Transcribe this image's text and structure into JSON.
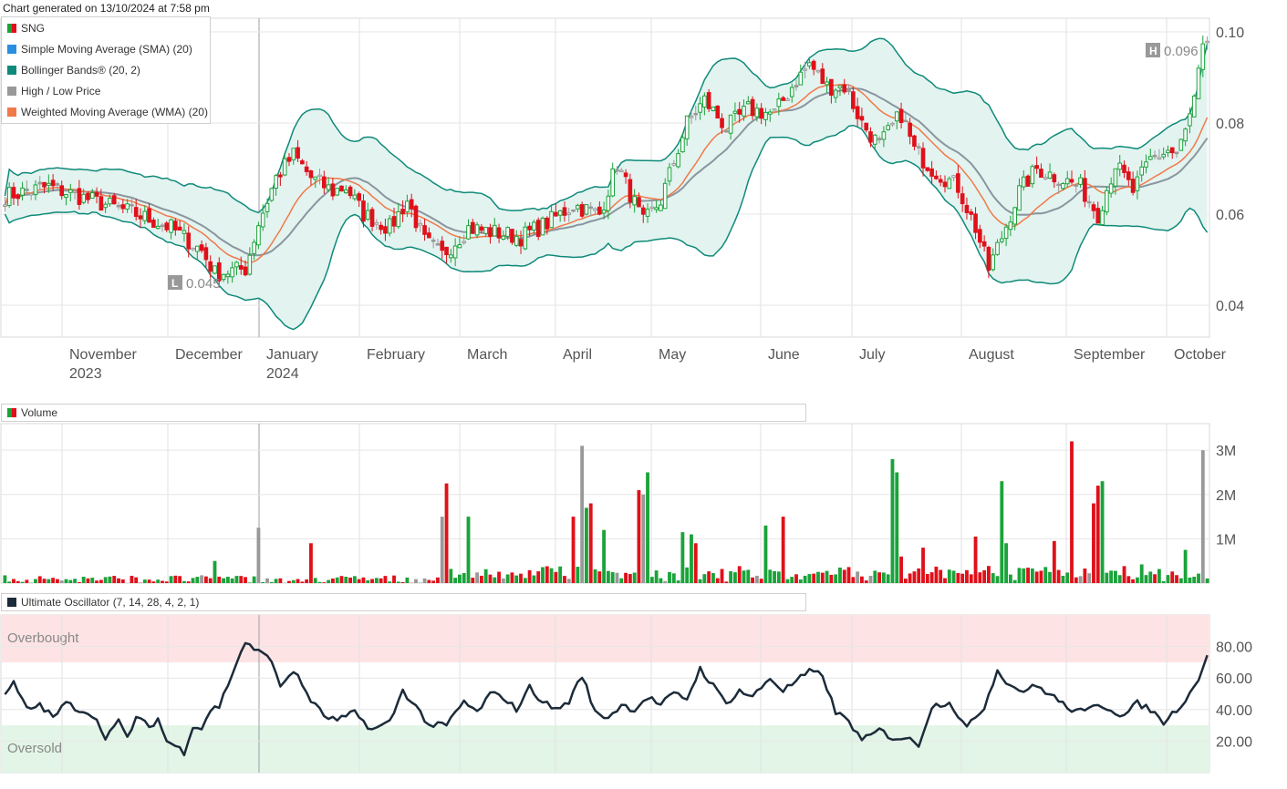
{
  "header": {
    "generated": "Chart generated on 13/10/2024 at 7:58 pm"
  },
  "legend": [
    {
      "label": "SNG",
      "color": "split"
    },
    {
      "label": "Simple Moving Average (SMA) (20)",
      "color": "#2a8ee0"
    },
    {
      "label": "Bollinger Bands® (20, 2)",
      "color": "#0f8a7a"
    },
    {
      "label": "High / Low Price",
      "color": "#999999"
    },
    {
      "label": "Weighted Moving Average (WMA) (20)",
      "color": "#f0794a"
    }
  ],
  "volume_panel": {
    "title": "Volume"
  },
  "osc_panel": {
    "title": "Ultimate Oscillator (7, 14, 28, 4, 2, 1)",
    "overbought": "Overbought",
    "oversold": "Oversold"
  },
  "colors": {
    "up": "#1aa33a",
    "down": "#e0101a",
    "neutral": "#999999",
    "band": "#0f8a7a",
    "bandFill": "#e3f3f0",
    "sma": "#8a959e",
    "wma": "#f0794a",
    "osc": "#1c2b3a",
    "obFill": "#fde3e3",
    "osFill": "#e3f5e6"
  },
  "chart_data": [
    {
      "type": "candlestick",
      "title": "SNG",
      "ylim": [
        0.033,
        0.103
      ],
      "y_ticks": [
        "0.10",
        "0.08",
        "0.06",
        "0.04"
      ],
      "x_ticks": [
        {
          "label": "November",
          "sub": "2023",
          "x": 68
        },
        {
          "label": "December",
          "sub": "",
          "x": 184
        },
        {
          "label": "January",
          "sub": "2024",
          "x": 284
        },
        {
          "label": "February",
          "sub": "",
          "x": 394
        },
        {
          "label": "March",
          "sub": "",
          "x": 504
        },
        {
          "label": "April",
          "sub": "",
          "x": 609
        },
        {
          "label": "May",
          "sub": "",
          "x": 714
        },
        {
          "label": "June",
          "sub": "",
          "x": 834
        },
        {
          "label": "July",
          "sub": "",
          "x": 934
        },
        {
          "label": "August",
          "sub": "",
          "x": 1054
        },
        {
          "label": "September",
          "sub": "",
          "x": 1169
        },
        {
          "label": "October",
          "sub": "",
          "x": 1279
        }
      ],
      "high_label": {
        "tag": "H",
        "value": "0.096"
      },
      "low_label": {
        "tag": "L",
        "value": "0.045"
      },
      "close_anchors": [
        [
          0,
          0.064
        ],
        [
          10,
          0.066
        ],
        [
          20,
          0.063
        ],
        [
          30,
          0.06
        ],
        [
          38,
          0.057
        ],
        [
          45,
          0.052
        ],
        [
          48,
          0.047
        ],
        [
          55,
          0.048
        ],
        [
          58,
          0.058
        ],
        [
          62,
          0.068
        ],
        [
          66,
          0.073
        ],
        [
          70,
          0.068
        ],
        [
          75,
          0.065
        ],
        [
          78,
          0.066
        ],
        [
          82,
          0.06
        ],
        [
          88,
          0.057
        ],
        [
          92,
          0.063
        ],
        [
          96,
          0.054
        ],
        [
          100,
          0.051
        ],
        [
          106,
          0.057
        ],
        [
          112,
          0.056
        ],
        [
          118,
          0.055
        ],
        [
          124,
          0.058
        ],
        [
          130,
          0.062
        ],
        [
          136,
          0.06
        ],
        [
          140,
          0.071
        ],
        [
          146,
          0.058
        ],
        [
          150,
          0.063
        ],
        [
          156,
          0.08
        ],
        [
          160,
          0.085
        ],
        [
          165,
          0.079
        ],
        [
          170,
          0.083
        ],
        [
          176,
          0.082
        ],
        [
          180,
          0.088
        ],
        [
          184,
          0.093
        ],
        [
          188,
          0.088
        ],
        [
          192,
          0.088
        ],
        [
          196,
          0.08
        ],
        [
          200,
          0.075
        ],
        [
          205,
          0.082
        ],
        [
          208,
          0.074
        ],
        [
          212,
          0.07
        ],
        [
          218,
          0.066
        ],
        [
          222,
          0.057
        ],
        [
          225,
          0.048
        ],
        [
          228,
          0.055
        ],
        [
          232,
          0.065
        ],
        [
          236,
          0.07
        ],
        [
          241,
          0.068
        ],
        [
          246,
          0.066
        ],
        [
          250,
          0.06
        ],
        [
          254,
          0.071
        ],
        [
          258,
          0.065
        ],
        [
          262,
          0.072
        ],
        [
          266,
          0.074
        ],
        [
          268,
          0.073
        ],
        [
          270,
          0.078
        ],
        [
          272,
          0.085
        ],
        [
          274,
          0.096
        ]
      ],
      "volume_ylim": [
        0,
        3.6
      ],
      "volume_ticks": [
        "3M",
        "2M",
        "1M"
      ],
      "volume_spikes": [
        [
          48,
          0.5
        ],
        [
          58,
          1.25
        ],
        [
          70,
          0.9
        ],
        [
          100,
          1.5
        ],
        [
          101,
          2.25
        ],
        [
          106,
          1.5
        ],
        [
          130,
          1.5
        ],
        [
          132,
          3.1
        ],
        [
          133,
          1.7
        ],
        [
          134,
          1.8
        ],
        [
          137,
          1.2
        ],
        [
          145,
          2.1
        ],
        [
          146,
          2.0
        ],
        [
          147,
          2.5
        ],
        [
          155,
          1.15
        ],
        [
          157,
          1.1
        ],
        [
          158,
          0.9
        ],
        [
          174,
          1.3
        ],
        [
          178,
          1.5
        ],
        [
          203,
          2.8
        ],
        [
          204,
          2.5
        ],
        [
          205,
          0.6
        ],
        [
          210,
          0.8
        ],
        [
          222,
          1.05
        ],
        [
          228,
          2.3
        ],
        [
          229,
          0.9
        ],
        [
          240,
          0.95
        ],
        [
          244,
          3.2
        ],
        [
          249,
          1.8
        ],
        [
          250,
          2.2
        ],
        [
          251,
          2.3
        ],
        [
          270,
          0.75
        ],
        [
          274,
          3.0
        ]
      ],
      "osc_ylim": [
        0,
        100
      ],
      "osc_ticks": [
        "80.00",
        "60.00",
        "40.00",
        "20.00"
      ],
      "osc_overbought": 70,
      "osc_oversold": 30,
      "osc_anchors": [
        [
          0,
          48
        ],
        [
          2,
          57
        ],
        [
          5,
          40
        ],
        [
          8,
          43
        ],
        [
          11,
          35
        ],
        [
          14,
          44
        ],
        [
          17,
          40
        ],
        [
          20,
          37
        ],
        [
          23,
          23
        ],
        [
          26,
          32
        ],
        [
          28,
          22
        ],
        [
          30,
          35
        ],
        [
          33,
          29
        ],
        [
          35,
          34
        ],
        [
          37,
          20
        ],
        [
          39,
          17
        ],
        [
          41,
          13
        ],
        [
          43,
          30
        ],
        [
          45,
          28
        ],
        [
          47,
          40
        ],
        [
          49,
          42
        ],
        [
          52,
          63
        ],
        [
          55,
          83
        ],
        [
          57,
          77
        ],
        [
          60,
          76
        ],
        [
          63,
          55
        ],
        [
          66,
          65
        ],
        [
          70,
          46
        ],
        [
          73,
          36
        ],
        [
          76,
          33
        ],
        [
          80,
          38
        ],
        [
          84,
          27
        ],
        [
          88,
          32
        ],
        [
          91,
          52
        ],
        [
          94,
          42
        ],
        [
          97,
          30
        ],
        [
          101,
          30
        ],
        [
          105,
          45
        ],
        [
          108,
          38
        ],
        [
          111,
          50
        ],
        [
          114,
          48
        ],
        [
          117,
          40
        ],
        [
          120,
          54
        ],
        [
          123,
          45
        ],
        [
          126,
          40
        ],
        [
          129,
          45
        ],
        [
          132,
          62
        ],
        [
          135,
          38
        ],
        [
          138,
          35
        ],
        [
          141,
          43
        ],
        [
          144,
          40
        ],
        [
          147,
          48
        ],
        [
          150,
          43
        ],
        [
          153,
          50
        ],
        [
          156,
          47
        ],
        [
          159,
          66
        ],
        [
          162,
          55
        ],
        [
          165,
          44
        ],
        [
          168,
          52
        ],
        [
          171,
          48
        ],
        [
          175,
          60
        ],
        [
          178,
          52
        ],
        [
          181,
          58
        ],
        [
          184,
          64
        ],
        [
          187,
          62
        ],
        [
          190,
          38
        ],
        [
          193,
          33
        ],
        [
          196,
          20
        ],
        [
          200,
          27
        ],
        [
          203,
          22
        ],
        [
          206,
          22
        ],
        [
          209,
          18
        ],
        [
          212,
          42
        ],
        [
          216,
          45
        ],
        [
          220,
          28
        ],
        [
          224,
          42
        ],
        [
          227,
          65
        ],
        [
          230,
          55
        ],
        [
          233,
          52
        ],
        [
          236,
          55
        ],
        [
          240,
          48
        ],
        [
          243,
          41
        ],
        [
          247,
          38
        ],
        [
          250,
          44
        ],
        [
          253,
          40
        ],
        [
          256,
          36
        ],
        [
          259,
          44
        ],
        [
          262,
          40
        ],
        [
          265,
          32
        ],
        [
          268,
          40
        ],
        [
          271,
          50
        ],
        [
          273,
          60
        ],
        [
          275,
          75
        ]
      ]
    }
  ]
}
